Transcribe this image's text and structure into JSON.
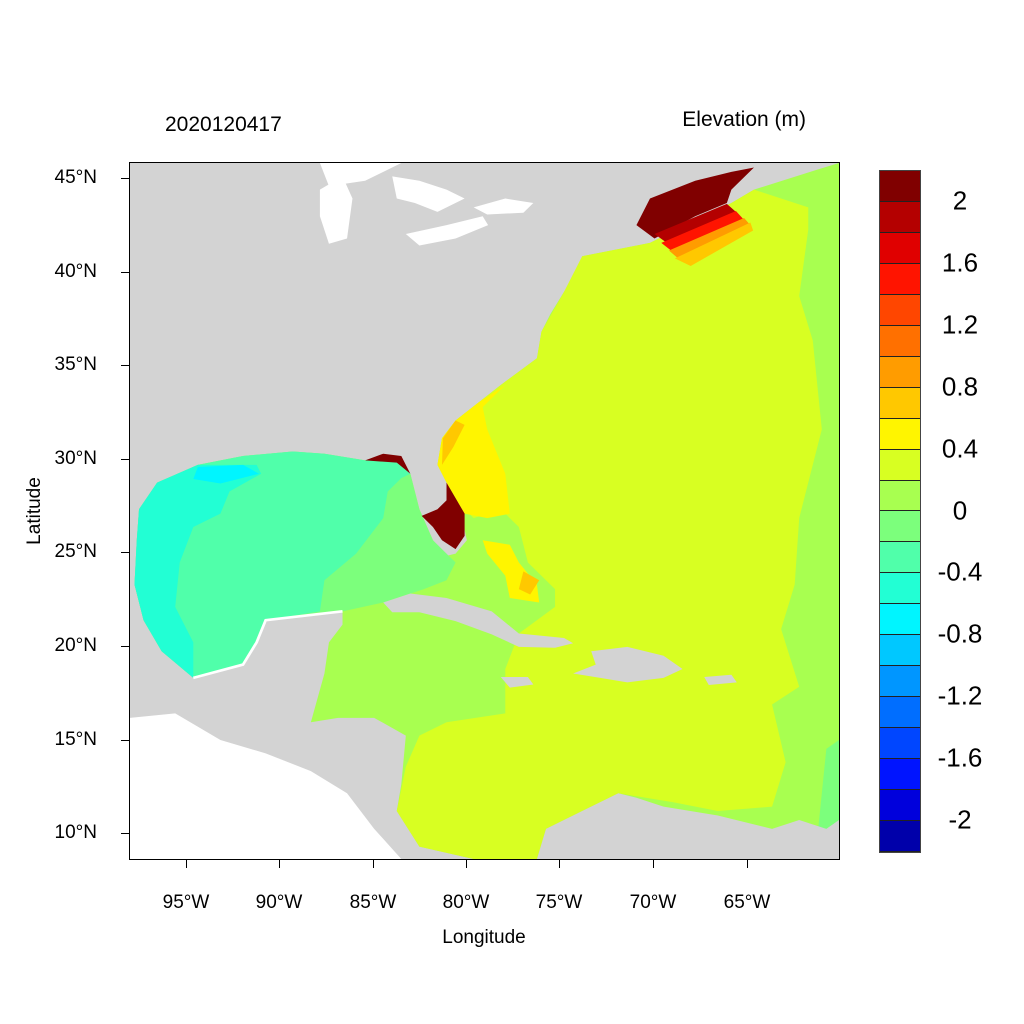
{
  "header": {
    "timestamp": "2020120417",
    "variable_title": "Elevation (m)"
  },
  "axes": {
    "xlabel": "Longitude",
    "ylabel": "Latitude",
    "lon_ticks": [
      "95°W",
      "90°W",
      "85°W",
      "80°W",
      "75°W",
      "70°W",
      "65°W"
    ],
    "lat_ticks": [
      "45°N",
      "40°N",
      "35°N",
      "30°N",
      "25°N",
      "20°N",
      "15°N",
      "10°N"
    ],
    "lon_range": [
      -98,
      -60
    ],
    "lat_range": [
      8.6,
      45.9
    ]
  },
  "colorbar": {
    "labels": [
      "2",
      "1.6",
      "1.2",
      "0.8",
      "0.4",
      "0",
      "-0.4",
      "-0.8",
      "-1.2",
      "-1.6",
      "-2"
    ],
    "interval": 0.2,
    "colors": [
      "#800000",
      "#b40000",
      "#e00000",
      "#ff1400",
      "#ff4600",
      "#ff7000",
      "#ff9c00",
      "#ffc800",
      "#fff500",
      "#d8ff22",
      "#a8ff50",
      "#7cff7c",
      "#50ffaa",
      "#22ffd4",
      "#00f5ff",
      "#00c8ff",
      "#0096ff",
      "#006eff",
      "#0046ff",
      "#0014ff",
      "#0000dc",
      "#0000aa"
    ]
  },
  "map_colors": {
    "land": "#d3d3d3",
    "water_bodies": "#ffffff"
  }
}
